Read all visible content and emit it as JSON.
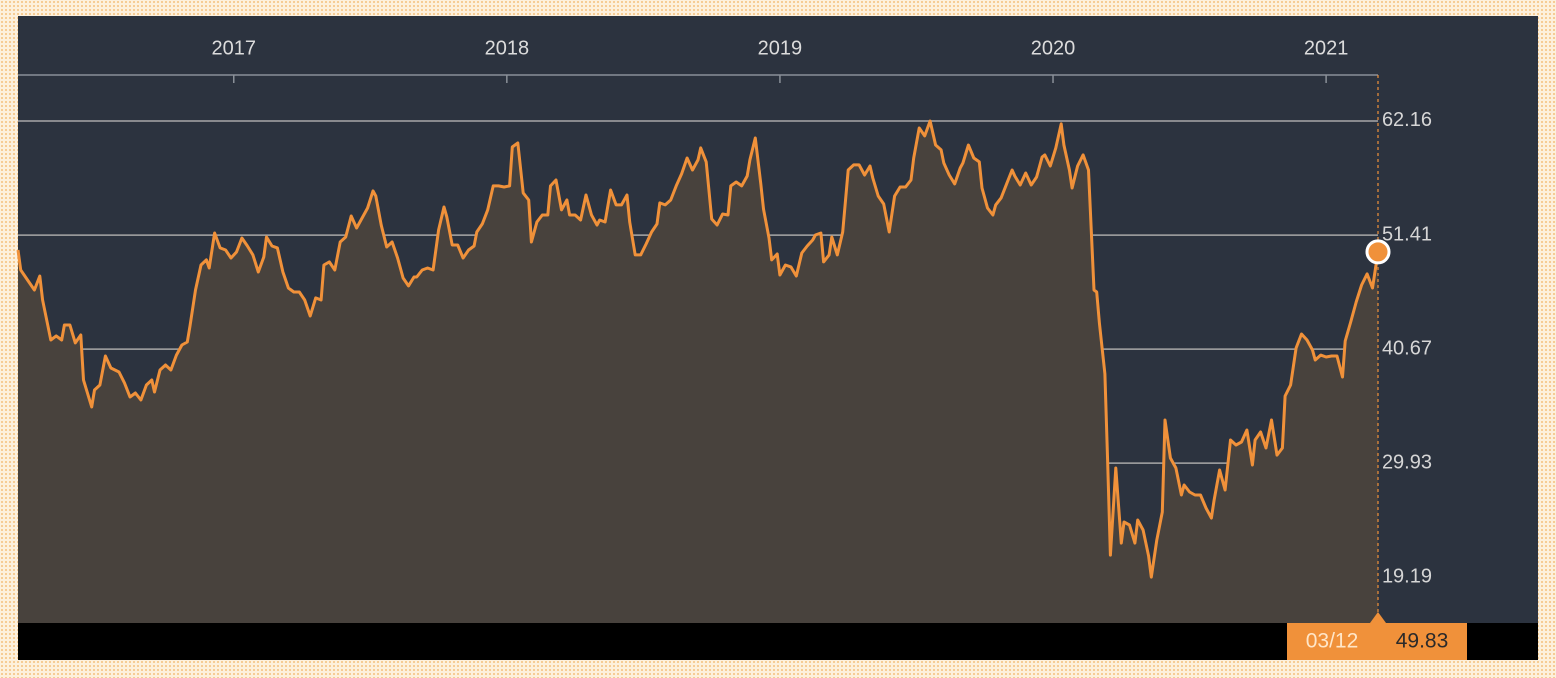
{
  "chart_data": {
    "type": "area",
    "x": [
      2016.21,
      2016.22,
      2016.25,
      2016.27,
      2016.29,
      2016.3,
      2016.33,
      2016.35,
      2016.37,
      2016.38,
      2016.4,
      2016.42,
      2016.44,
      2016.45,
      2016.48,
      2016.49,
      2016.51,
      2016.53,
      2016.55,
      2016.58,
      2016.6,
      2016.62,
      2016.64,
      2016.66,
      2016.68,
      2016.7,
      2016.71,
      2016.73,
      2016.75,
      2016.77,
      2016.79,
      2016.81,
      2016.83,
      2016.84,
      2016.86,
      2016.88,
      2016.9,
      2016.91,
      2016.93,
      2016.95,
      2016.97,
      2016.99,
      2017.01,
      2017.03,
      2017.05,
      2017.07,
      2017.09,
      2017.11,
      2017.12,
      2017.14,
      2017.16,
      2017.18,
      2017.2,
      2017.22,
      2017.24,
      2017.26,
      2017.28,
      2017.3,
      2017.32,
      2017.33,
      2017.35,
      2017.37,
      2017.39,
      2017.41,
      2017.43,
      2017.45,
      2017.47,
      2017.49,
      2017.51,
      2017.52,
      2017.54,
      2017.56,
      2017.58,
      2017.6,
      2017.62,
      2017.64,
      2017.66,
      2017.67,
      2017.69,
      2017.71,
      2017.73,
      2017.75,
      2017.77,
      2017.78,
      2017.8,
      2017.82,
      2017.84,
      2017.86,
      2017.88,
      2017.89,
      2017.91,
      2017.93,
      2017.95,
      2017.97,
      2017.99,
      2018.01,
      2018.02,
      2018.04,
      2018.06,
      2018.08,
      2018.09,
      2018.11,
      2018.13,
      2018.15,
      2018.16,
      2018.18,
      2018.2,
      2018.22,
      2018.23,
      2018.25,
      2018.27,
      2018.29,
      2018.31,
      2018.33,
      2018.34,
      2018.36,
      2018.38,
      2018.4,
      2018.42,
      2018.44,
      2018.45,
      2018.47,
      2018.49,
      2018.51,
      2018.53,
      2018.55,
      2018.56,
      2018.58,
      2018.6,
      2018.62,
      2018.64,
      2018.66,
      2018.68,
      2018.7,
      2018.71,
      2018.73,
      2018.75,
      2018.77,
      2018.79,
      2018.81,
      2018.82,
      2018.84,
      2018.86,
      2018.88,
      2018.89,
      2018.91,
      2018.93,
      2018.94,
      2018.96,
      2018.97,
      2018.99,
      2019.0,
      2019.02,
      2019.04,
      2019.06,
      2019.08,
      2019.1,
      2019.12,
      2019.13,
      2019.15,
      2019.16,
      2019.18,
      2019.19,
      2019.21,
      2019.23,
      2019.25,
      2019.27,
      2019.29,
      2019.31,
      2019.33,
      2019.34,
      2019.36,
      2019.38,
      2019.4,
      2019.42,
      2019.44,
      2019.46,
      2019.48,
      2019.49,
      2019.51,
      2019.53,
      2019.55,
      2019.57,
      2019.59,
      2019.6,
      2019.62,
      2019.64,
      2019.66,
      2019.67,
      2019.69,
      2019.71,
      2019.73,
      2019.74,
      2019.76,
      2019.78,
      2019.79,
      2019.81,
      2019.83,
      2019.85,
      2019.86,
      2019.88,
      2019.9,
      2019.92,
      2019.94,
      2019.96,
      2019.97,
      2019.99,
      2020.01,
      2020.03,
      2020.04,
      2020.06,
      2020.07,
      2020.09,
      2020.11,
      2020.13,
      2020.15,
      2020.16,
      2020.17,
      2020.19,
      2020.2,
      2020.21,
      2020.23,
      2020.25,
      2020.26,
      2020.28,
      2020.3,
      2020.31,
      2020.33,
      2020.35,
      2020.36,
      2020.38,
      2020.4,
      2020.41,
      2020.43,
      2020.45,
      2020.47,
      2020.48,
      2020.5,
      2020.52,
      2020.54,
      2020.56,
      2020.58,
      2020.59,
      2020.61,
      2020.63,
      2020.65,
      2020.67,
      2020.69,
      2020.71,
      2020.73,
      2020.74,
      2020.76,
      2020.78,
      2020.8,
      2020.82,
      2020.84,
      2020.85,
      2020.87,
      2020.89,
      2020.91,
      2020.93,
      2020.95,
      2020.96,
      2020.98,
      2021.0,
      2021.02,
      2021.04,
      2021.06,
      2021.07,
      2021.09,
      2021.11,
      2021.13,
      2021.15,
      2021.17,
      2021.19
    ],
    "values": [
      50.01,
      48.12,
      46.99,
      46.24,
      47.56,
      45.3,
      41.53,
      41.91,
      41.53,
      42.94,
      42.94,
      41.25,
      42.0,
      37.76,
      35.22,
      36.82,
      37.29,
      40.02,
      38.89,
      38.51,
      37.48,
      36.16,
      36.54,
      35.88,
      37.29,
      37.76,
      36.63,
      38.7,
      39.17,
      38.7,
      40.11,
      41.06,
      41.34,
      42.85,
      46.24,
      48.59,
      49.07,
      48.31,
      51.61,
      50.2,
      50.01,
      49.25,
      49.82,
      51.14,
      50.38,
      49.54,
      47.93,
      49.35,
      51.23,
      50.38,
      50.2,
      47.93,
      46.43,
      46.05,
      46.05,
      45.3,
      43.79,
      45.49,
      45.3,
      48.59,
      48.88,
      48.12,
      50.76,
      51.23,
      53.21,
      52.08,
      53.02,
      53.96,
      55.57,
      55.09,
      52.36,
      50.29,
      50.76,
      49.25,
      47.37,
      46.62,
      47.46,
      47.46,
      48.12,
      48.31,
      48.12,
      51.89,
      54.06,
      53.12,
      50.48,
      50.48,
      49.25,
      50.01,
      50.38,
      51.7,
      52.46,
      53.78,
      56.04,
      56.04,
      55.94,
      56.04,
      59.71,
      60.09,
      55.38,
      54.72,
      50.76,
      52.64,
      53.3,
      53.3,
      56.04,
      56.6,
      53.78,
      54.72,
      53.3,
      53.3,
      52.83,
      55.19,
      53.3,
      52.36,
      52.83,
      52.64,
      55.66,
      54.25,
      54.25,
      55.19,
      52.64,
      49.54,
      49.54,
      50.57,
      51.7,
      52.46,
      54.44,
      54.25,
      54.72,
      56.04,
      57.17,
      58.67,
      57.54,
      58.49,
      59.62,
      58.3,
      52.93,
      52.36,
      53.4,
      53.3,
      56.04,
      56.41,
      56.04,
      56.98,
      58.49,
      60.56,
      56.23,
      53.87,
      51.14,
      49.07,
      49.63,
      47.65,
      48.59,
      48.41,
      47.56,
      49.72,
      50.38,
      50.95,
      51.42,
      51.61,
      48.88,
      49.54,
      51.23,
      49.54,
      51.7,
      57.54,
      58.02,
      58.02,
      57.07,
      57.92,
      56.79,
      55.09,
      54.34,
      51.7,
      55.09,
      55.94,
      55.94,
      56.6,
      58.67,
      61.5,
      60.75,
      62.16,
      59.9,
      59.43,
      58.2,
      57.07,
      56.23,
      57.73,
      58.2,
      59.9,
      58.67,
      58.3,
      55.85,
      53.96,
      53.3,
      54.25,
      54.91,
      56.23,
      57.54,
      56.98,
      56.13,
      57.26,
      56.13,
      56.88,
      58.77,
      58.96,
      57.92,
      59.62,
      61.88,
      59.9,
      57.54,
      55.85,
      57.92,
      58.96,
      57.54,
      46.24,
      46.05,
      43.13,
      38.33,
      30.22,
      21.27,
      29.47,
      22.4,
      24.38,
      24.1,
      22.4,
      24.57,
      23.63,
      21.18,
      19.19,
      22.69,
      25.32,
      33.99,
      30.41,
      29.47,
      26.93,
      27.87,
      27.21,
      26.93,
      26.93,
      25.7,
      24.76,
      26.45,
      29.28,
      27.4,
      32.11,
      31.64,
      31.92,
      33.05,
      29.75,
      32.11,
      32.86,
      31.35,
      33.99,
      30.69,
      31.35,
      36.25,
      37.29,
      40.77,
      42.09,
      41.53,
      40.59,
      39.64,
      40.11,
      39.93,
      40.02,
      40.02,
      38.04,
      41.43,
      43.22,
      45.11,
      46.71,
      47.75,
      46.43,
      49.83
    ],
    "color": "#f0913a",
    "xlim": [
      2016.21,
      2021.19
    ],
    "xticks": [
      2017,
      2018,
      2019,
      2020,
      2021
    ],
    "ylim": [
      14.87,
      66.49
    ],
    "yticks": [
      19.19,
      29.93,
      40.67,
      51.41,
      62.16
    ],
    "grid": true,
    "last_date": "03/12"
  }
}
